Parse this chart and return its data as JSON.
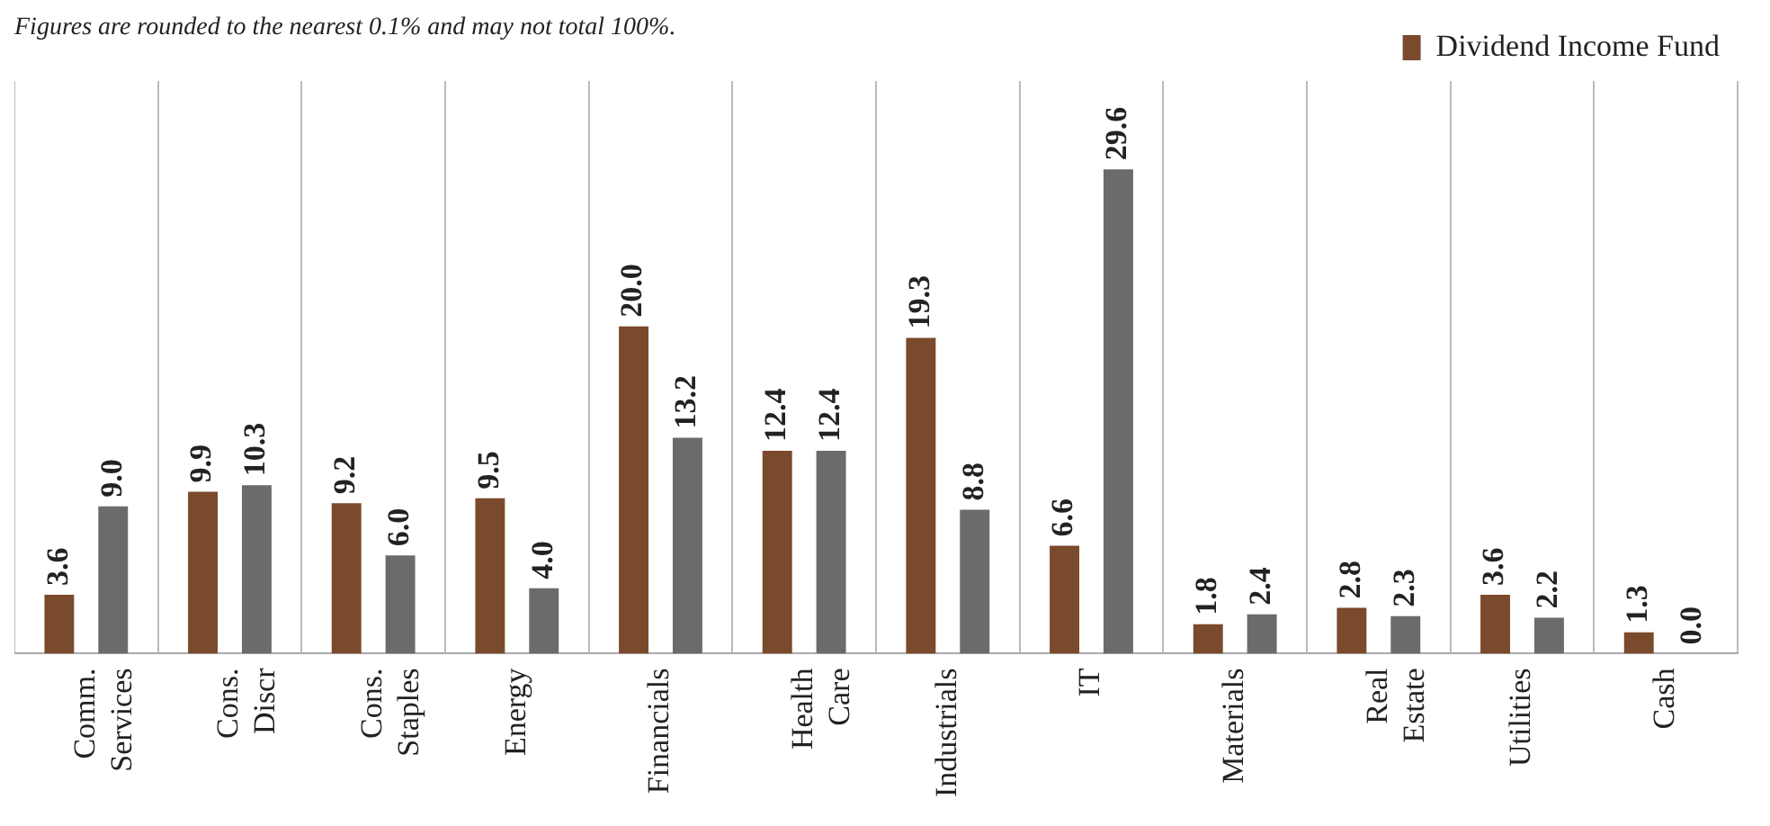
{
  "chart_data": {
    "type": "bar",
    "categories": [
      "Comm. Services",
      "Cons. Discr",
      "Cons. Staples",
      "Energy",
      "Financials",
      "Health Care",
      "Industrials",
      "IT",
      "Materials",
      "Real Estate",
      "Utilities",
      "Cash"
    ],
    "series": [
      {
        "name": "Dividend Income Fund",
        "color": "#7a4a2c",
        "values": [
          3.6,
          9.9,
          9.2,
          9.5,
          20.0,
          12.4,
          19.3,
          6.6,
          1.8,
          2.8,
          3.6,
          1.3
        ],
        "value_labels": [
          "3.6",
          "9.9",
          "9.2",
          "9.5",
          "20.0",
          "12.4",
          "19.3",
          "6.6",
          "1.8",
          "2.8",
          "3.6",
          "1.3"
        ]
      },
      {
        "color": "#6b6b6b",
        "values": [
          9.0,
          10.3,
          6.0,
          4.0,
          13.2,
          12.4,
          8.8,
          29.6,
          2.4,
          2.3,
          2.2,
          0.0
        ],
        "value_labels": [
          "9.0",
          "10.3",
          "6.0",
          "4.0",
          "13.2",
          "12.4",
          "8.8",
          "29.6",
          "2.4",
          "2.3",
          "2.2",
          "0.0"
        ]
      }
    ],
    "grid": "x",
    "legend": "top right",
    "annotations": [
      "Figures are rounded to the nearest 0.1% and may not total 100%."
    ]
  }
}
